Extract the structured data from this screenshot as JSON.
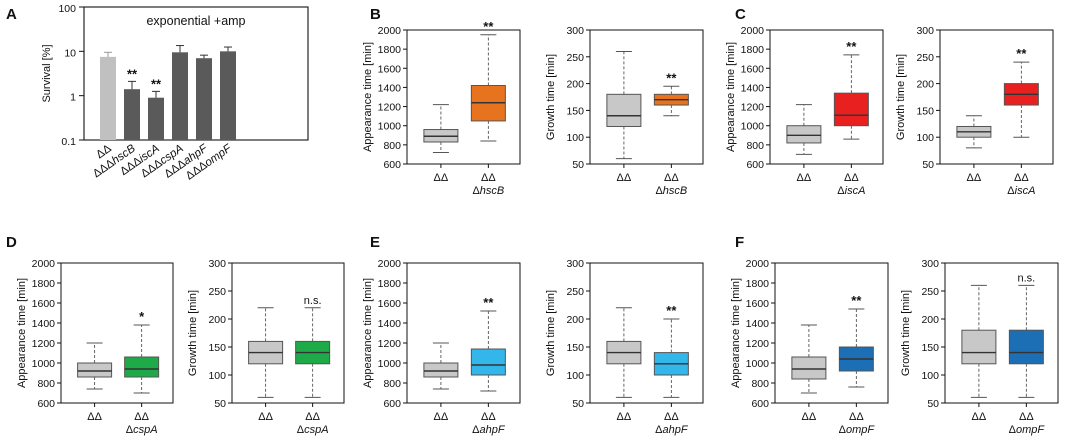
{
  "panel_letters": [
    "A",
    "B",
    "C",
    "D",
    "E",
    "F"
  ],
  "colors": {
    "control_gray": "#c8c8c8",
    "bar_light": "#c0c0c0",
    "bar_dark": "#5a5a5a",
    "hscB": "#e8731f",
    "iscA": "#e8201f",
    "cspA": "#1faa4a",
    "ahpF": "#33b6ea",
    "ompF": "#1c6fb5"
  },
  "chart_data": [
    {
      "id": "A",
      "type": "bar",
      "title": "exponential +amp",
      "ylabel": "Survival [%]",
      "yscale": "log",
      "ylim": [
        0.1,
        100
      ],
      "yticks": [
        0.1,
        1,
        10,
        100
      ],
      "ytick_labels": [
        "0.1",
        "1",
        "10",
        "100"
      ],
      "categories": [
        "ΔΔ",
        "ΔΔΔhscB",
        "ΔΔΔiscA",
        "ΔΔΔcspA",
        "ΔΔΔahpF",
        "ΔΔΔompF"
      ],
      "category_prefix": [
        "ΔΔ",
        "ΔΔΔ",
        "ΔΔΔ",
        "ΔΔΔ",
        "ΔΔΔ",
        "ΔΔΔ"
      ],
      "category_gene": [
        "",
        "hscB",
        "iscA",
        "cspA",
        "ahpF",
        "ompF"
      ],
      "values": [
        7.5,
        1.4,
        0.9,
        9.5,
        7.0,
        10.0
      ],
      "errors": [
        2.0,
        0.7,
        0.35,
        4.0,
        1.2,
        2.5
      ],
      "significance": [
        "",
        "**",
        "**",
        "",
        "",
        ""
      ]
    },
    {
      "id": "B",
      "type": "box",
      "gene": "hscB",
      "color_key": "hscB",
      "plots": [
        {
          "ylabel": "Appearance time [min]",
          "ylim": [
            600,
            2000
          ],
          "yticks": [
            600,
            800,
            1000,
            1200,
            1400,
            1600,
            1800,
            2000
          ],
          "categories": [
            "ΔΔ",
            "ΔΔ"
          ],
          "category_sub": [
            "",
            "ΔhscB"
          ],
          "boxes": [
            {
              "min": 720,
              "q1": 830,
              "median": 890,
              "q3": 960,
              "max": 1220
            },
            {
              "min": 840,
              "q1": 1050,
              "median": 1240,
              "q3": 1420,
              "max": 1950
            }
          ],
          "significance": "**"
        },
        {
          "ylabel": "Growth time [min]",
          "ylim": [
            50,
            300
          ],
          "yticks": [
            50,
            100,
            150,
            200,
            250,
            300
          ],
          "categories": [
            "ΔΔ",
            "ΔΔ"
          ],
          "category_sub": [
            "",
            "ΔhscB"
          ],
          "boxes": [
            {
              "min": 60,
              "q1": 120,
              "median": 140,
              "q3": 180,
              "max": 260
            },
            {
              "min": 140,
              "q1": 160,
              "median": 170,
              "q3": 180,
              "max": 195
            }
          ],
          "significance": "**"
        }
      ]
    },
    {
      "id": "C",
      "type": "box",
      "gene": "iscA",
      "color_key": "iscA",
      "plots": [
        {
          "ylabel": "Appearance time [min]",
          "ylim": [
            600,
            2000
          ],
          "yticks": [
            600,
            800,
            1000,
            1200,
            1400,
            1600,
            1800,
            2000
          ],
          "categories": [
            "ΔΔ",
            "ΔΔ"
          ],
          "category_sub": [
            "",
            "ΔiscA"
          ],
          "boxes": [
            {
              "min": 700,
              "q1": 820,
              "median": 900,
              "q3": 1000,
              "max": 1220
            },
            {
              "min": 860,
              "q1": 1000,
              "median": 1110,
              "q3": 1340,
              "max": 1740
            }
          ],
          "significance": "**"
        },
        {
          "ylabel": "Growth time [min]",
          "ylim": [
            50,
            300
          ],
          "yticks": [
            50,
            100,
            150,
            200,
            250,
            300
          ],
          "categories": [
            "ΔΔ",
            "ΔΔ"
          ],
          "category_sub": [
            "",
            "ΔiscA"
          ],
          "boxes": [
            {
              "min": 80,
              "q1": 100,
              "median": 110,
              "q3": 120,
              "max": 140
            },
            {
              "min": 100,
              "q1": 160,
              "median": 180,
              "q3": 200,
              "max": 240
            }
          ],
          "significance": "**"
        }
      ]
    },
    {
      "id": "D",
      "type": "box",
      "gene": "cspA",
      "color_key": "cspA",
      "plots": [
        {
          "ylabel": "Appearance time [min]",
          "ylim": [
            600,
            2000
          ],
          "yticks": [
            600,
            800,
            1000,
            1200,
            1400,
            1600,
            1800,
            2000
          ],
          "categories": [
            "ΔΔ",
            "ΔΔ"
          ],
          "category_sub": [
            "",
            "ΔcspA"
          ],
          "boxes": [
            {
              "min": 740,
              "q1": 860,
              "median": 920,
              "q3": 1000,
              "max": 1200
            },
            {
              "min": 700,
              "q1": 860,
              "median": 940,
              "q3": 1060,
              "max": 1380
            }
          ],
          "significance": "*"
        },
        {
          "ylabel": "Growth time [min]",
          "ylim": [
            50,
            300
          ],
          "yticks": [
            50,
            100,
            150,
            200,
            250,
            300
          ],
          "categories": [
            "ΔΔ",
            "ΔΔ"
          ],
          "category_sub": [
            "",
            "ΔcspA"
          ],
          "boxes": [
            {
              "min": 60,
              "q1": 120,
              "median": 140,
              "q3": 160,
              "max": 220
            },
            {
              "min": 60,
              "q1": 120,
              "median": 140,
              "q3": 160,
              "max": 220
            }
          ],
          "significance": "n.s."
        }
      ]
    },
    {
      "id": "E",
      "type": "box",
      "gene": "ahpF",
      "color_key": "ahpF",
      "plots": [
        {
          "ylabel": "Appearance time [min]",
          "ylim": [
            600,
            2000
          ],
          "yticks": [
            600,
            800,
            1000,
            1200,
            1400,
            1600,
            1800,
            2000
          ],
          "categories": [
            "ΔΔ",
            "ΔΔ"
          ],
          "category_sub": [
            "",
            "ΔahpF"
          ],
          "boxes": [
            {
              "min": 740,
              "q1": 860,
              "median": 920,
              "q3": 1000,
              "max": 1200
            },
            {
              "min": 720,
              "q1": 880,
              "median": 980,
              "q3": 1140,
              "max": 1520
            }
          ],
          "significance": "**"
        },
        {
          "ylabel": "Growth time [min]",
          "ylim": [
            50,
            300
          ],
          "yticks": [
            50,
            100,
            150,
            200,
            250,
            300
          ],
          "categories": [
            "ΔΔ",
            "ΔΔ"
          ],
          "category_sub": [
            "",
            "ΔahpF"
          ],
          "boxes": [
            {
              "min": 60,
              "q1": 120,
              "median": 140,
              "q3": 160,
              "max": 220
            },
            {
              "min": 60,
              "q1": 100,
              "median": 120,
              "q3": 140,
              "max": 200
            }
          ],
          "significance": "**"
        }
      ]
    },
    {
      "id": "F",
      "type": "box",
      "gene": "ompF",
      "color_key": "ompF",
      "plots": [
        {
          "ylabel": "Appearance time [min]",
          "ylim": [
            600,
            2000
          ],
          "yticks": [
            600,
            800,
            1000,
            1200,
            1400,
            1600,
            1800,
            2000
          ],
          "categories": [
            "ΔΔ",
            "ΔΔ"
          ],
          "category_sub": [
            "",
            "ΔompF"
          ],
          "boxes": [
            {
              "min": 700,
              "q1": 840,
              "median": 940,
              "q3": 1060,
              "max": 1380
            },
            {
              "min": 760,
              "q1": 920,
              "median": 1040,
              "q3": 1160,
              "max": 1540
            }
          ],
          "significance": "**"
        },
        {
          "ylabel": "Growth time [min]",
          "ylim": [
            50,
            300
          ],
          "yticks": [
            50,
            100,
            150,
            200,
            250,
            300
          ],
          "categories": [
            "ΔΔ",
            "ΔΔ"
          ],
          "category_sub": [
            "",
            "ΔompF"
          ],
          "boxes": [
            {
              "min": 60,
              "q1": 120,
              "median": 140,
              "q3": 180,
              "max": 260
            },
            {
              "min": 60,
              "q1": 120,
              "median": 140,
              "q3": 180,
              "max": 260
            }
          ],
          "significance": "n.s."
        }
      ]
    }
  ]
}
